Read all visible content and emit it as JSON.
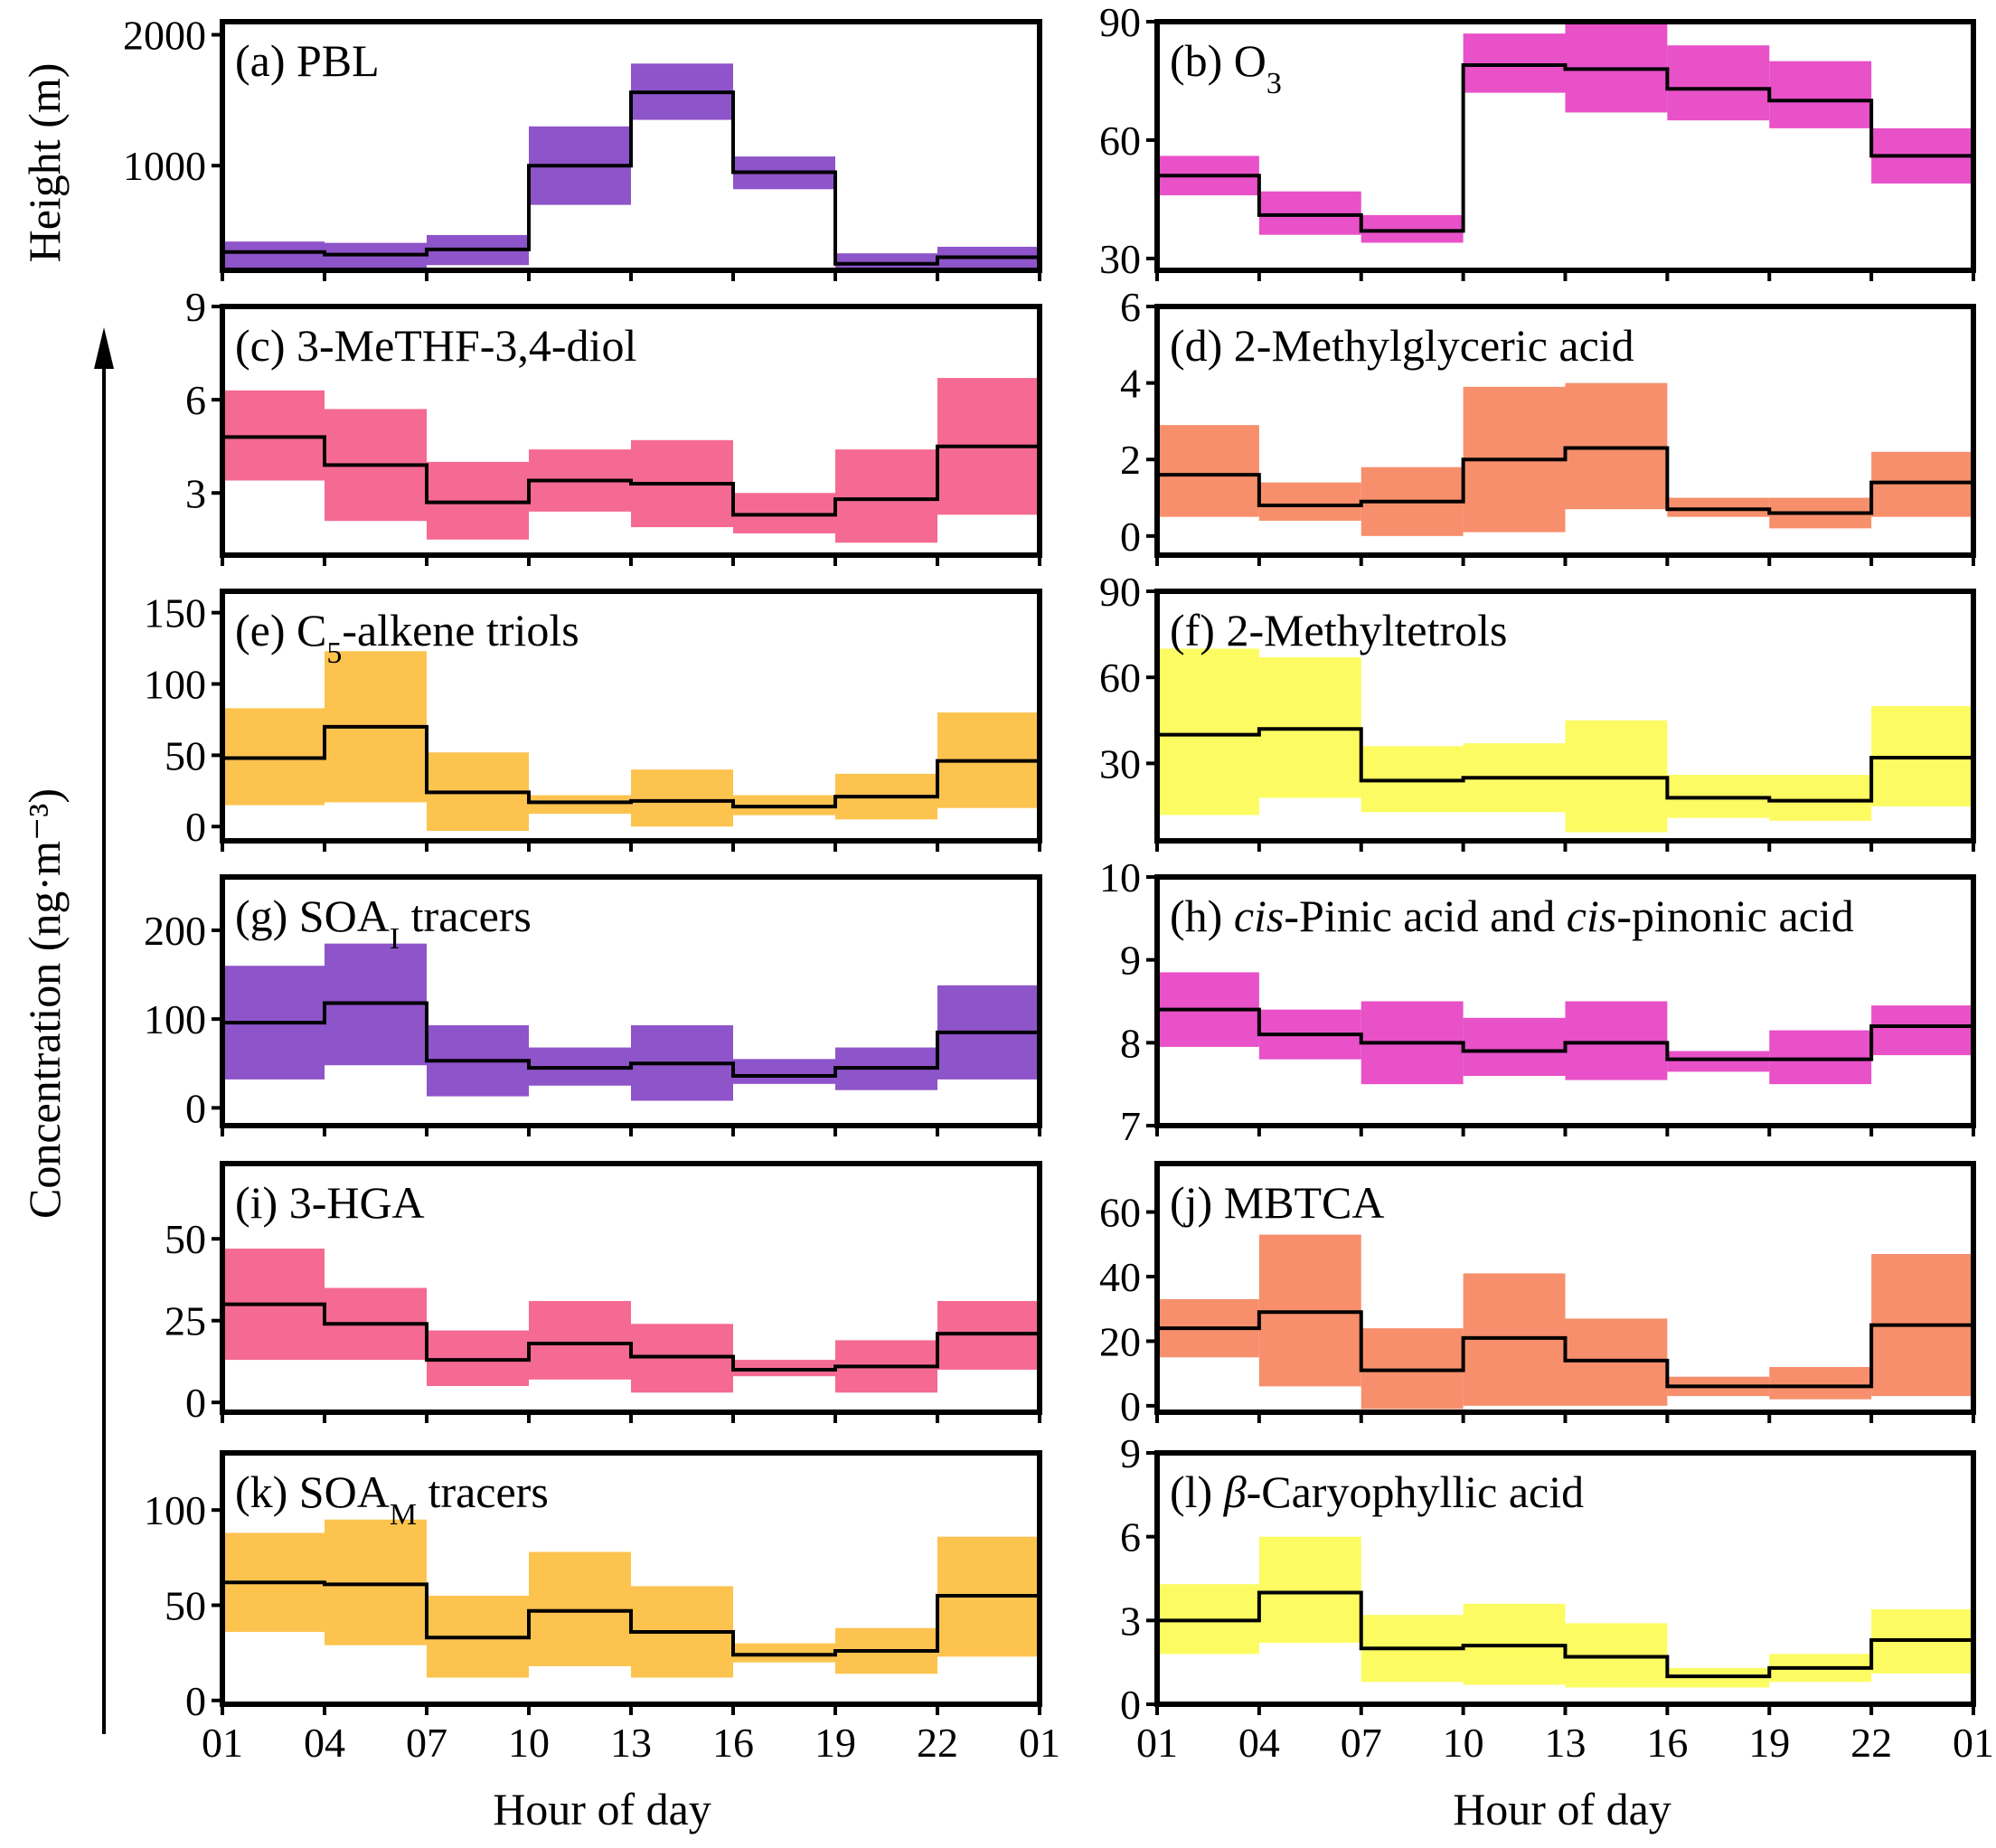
{
  "figure": {
    "x_title": "Hour of day",
    "pbl_y_title": "Height (m)",
    "conc_y_title": "Concentration (ng·m⁻³)",
    "hour_ticks": [
      "01",
      "04",
      "07",
      "10",
      "13",
      "16",
      "19",
      "22",
      "01"
    ]
  },
  "chart_data": [
    {
      "id": "a",
      "type": "step-range",
      "label": "(a) PBL",
      "color": "#8e54c9",
      "ylim": [
        200,
        2100
      ],
      "yticks": [
        1000,
        2000
      ],
      "ylabel": "Height (m)",
      "median": [
        340,
        320,
        360,
        1000,
        1560,
        950,
        250,
        300
      ],
      "lower": [
        220,
        200,
        240,
        700,
        1350,
        820,
        190,
        210
      ],
      "upper": [
        420,
        410,
        470,
        1300,
        1780,
        1070,
        330,
        380
      ]
    },
    {
      "id": "b",
      "type": "step-range",
      "label": "(b) O",
      "label_sub": "3",
      "color": "#e851c8",
      "ylim": [
        27,
        90
      ],
      "yticks": [
        30,
        60,
        90
      ],
      "median": [
        51,
        41,
        37,
        79,
        78,
        73,
        70,
        56
      ],
      "lower": [
        46,
        36,
        34,
        72,
        67,
        65,
        63,
        49
      ],
      "upper": [
        56,
        47,
        41,
        87,
        90,
        84,
        80,
        63
      ]
    },
    {
      "id": "c",
      "type": "step-range",
      "label": "(c) 3-MeTHF-3,4-diol",
      "color": "#f56a92",
      "ylim": [
        1.0,
        9
      ],
      "yticks": [
        3,
        6,
        9
      ],
      "median": [
        4.8,
        3.9,
        2.7,
        3.4,
        3.3,
        2.3,
        2.8,
        4.5
      ],
      "lower": [
        3.4,
        2.1,
        1.5,
        2.4,
        1.9,
        1.7,
        1.4,
        2.3
      ],
      "upper": [
        6.3,
        5.7,
        4.0,
        4.4,
        4.7,
        3.0,
        4.4,
        6.7
      ]
    },
    {
      "id": "d",
      "type": "step-range",
      "label": "(d) 2-Methylglyceric acid",
      "color": "#f78f6c",
      "ylim": [
        -0.5,
        6
      ],
      "yticks": [
        0,
        2,
        4,
        6
      ],
      "median": [
        1.6,
        0.8,
        0.9,
        2.0,
        2.3,
        0.7,
        0.6,
        1.4
      ],
      "lower": [
        0.5,
        0.4,
        0.0,
        0.1,
        0.7,
        0.5,
        0.2,
        0.5
      ],
      "upper": [
        2.9,
        1.4,
        1.8,
        3.9,
        4.0,
        1.0,
        1.0,
        2.2
      ]
    },
    {
      "id": "e",
      "type": "step-range",
      "label": "(e) C",
      "label_sub": "5",
      "label_rest": "-alkene triols",
      "color": "#fcc34f",
      "ylim": [
        -10,
        165
      ],
      "yticks": [
        0,
        50,
        100,
        150
      ],
      "median": [
        48,
        70,
        24,
        17,
        18,
        14,
        21,
        46
      ],
      "lower": [
        15,
        17,
        -3,
        9,
        0,
        8,
        5,
        13
      ],
      "upper": [
        83,
        123,
        52,
        22,
        40,
        22,
        37,
        80
      ]
    },
    {
      "id": "f",
      "type": "step-range",
      "label": "(f) 2-Methyltetrols",
      "color": "#fcfc62",
      "ylim": [
        3,
        90
      ],
      "yticks": [
        30,
        60,
        90
      ],
      "median": [
        40,
        42,
        24,
        25,
        25,
        18,
        17,
        32
      ],
      "lower": [
        12,
        18,
        13,
        13,
        6,
        11,
        10,
        15
      ],
      "upper": [
        70,
        67,
        36,
        37,
        45,
        26,
        26,
        50
      ]
    },
    {
      "id": "g",
      "type": "step-range",
      "label": "(g) SOA",
      "label_sub": "I",
      "label_rest": " tracers",
      "color": "#8e54c9",
      "ylim": [
        -20,
        260
      ],
      "yticks": [
        0,
        100,
        200
      ],
      "median": [
        96,
        118,
        53,
        45,
        50,
        36,
        45,
        85
      ],
      "lower": [
        32,
        48,
        13,
        25,
        8,
        27,
        20,
        32
      ],
      "upper": [
        160,
        185,
        93,
        68,
        93,
        55,
        68,
        138
      ]
    },
    {
      "id": "h",
      "type": "step-range",
      "label": "(h) ",
      "label_it1": "cis",
      "label_mid": "-Pinic acid and ",
      "label_it2": "cis",
      "label_end": "-pinonic acid",
      "color": "#e851c8",
      "ylim": [
        7,
        10
      ],
      "yticks": [
        7,
        8,
        9,
        10
      ],
      "median": [
        8.4,
        8.1,
        8.0,
        7.9,
        8.0,
        7.8,
        7.8,
        8.2
      ],
      "lower": [
        7.95,
        7.8,
        7.5,
        7.6,
        7.55,
        7.65,
        7.5,
        7.85
      ],
      "upper": [
        8.85,
        8.4,
        8.5,
        8.3,
        8.5,
        7.9,
        8.15,
        8.45
      ]
    },
    {
      "id": "i",
      "type": "step-range",
      "label": "(i) 3-HGA",
      "color": "#f56a92",
      "ylim": [
        -3,
        73
      ],
      "yticks": [
        0,
        25,
        50
      ],
      "median": [
        30,
        24,
        13,
        18,
        14,
        10,
        11,
        21
      ],
      "lower": [
        13,
        13,
        5,
        7,
        3,
        8,
        3,
        10
      ],
      "upper": [
        47,
        35,
        22,
        31,
        24,
        13,
        19,
        31
      ]
    },
    {
      "id": "j",
      "type": "step-range",
      "label": "(j) MBTCA",
      "color": "#f78f6c",
      "ylim": [
        -2,
        75
      ],
      "yticks": [
        0,
        20,
        40,
        60
      ],
      "median": [
        24,
        29,
        11,
        21,
        14,
        6,
        6,
        25
      ],
      "lower": [
        15,
        6,
        -1,
        0,
        0,
        3,
        2,
        3
      ],
      "upper": [
        33,
        53,
        24,
        41,
        27,
        9,
        12,
        47
      ]
    },
    {
      "id": "k",
      "type": "step-range",
      "label": "(k) SOA",
      "label_sub": "M",
      "label_rest": " tracers",
      "color": "#fcc34f",
      "ylim": [
        -2,
        130
      ],
      "yticks": [
        0,
        50,
        100
      ],
      "median": [
        62,
        61,
        33,
        47,
        36,
        24,
        26,
        55
      ],
      "lower": [
        36,
        29,
        12,
        18,
        12,
        20,
        14,
        23
      ],
      "upper": [
        88,
        95,
        55,
        78,
        60,
        30,
        38,
        86
      ]
    },
    {
      "id": "l",
      "type": "step-range",
      "label": "(l) ",
      "label_it1": "β",
      "label_mid": "-Caryophyllic acid",
      "color": "#fcfc62",
      "ylim": [
        0,
        9
      ],
      "yticks": [
        0,
        3,
        6,
        9
      ],
      "median": [
        3.0,
        4.0,
        2.0,
        2.1,
        1.7,
        1.0,
        1.3,
        2.3
      ],
      "lower": [
        1.8,
        2.2,
        0.8,
        0.7,
        0.6,
        0.6,
        0.8,
        1.1
      ],
      "upper": [
        4.3,
        6.0,
        3.2,
        3.6,
        2.9,
        1.3,
        1.8,
        3.4
      ]
    }
  ]
}
